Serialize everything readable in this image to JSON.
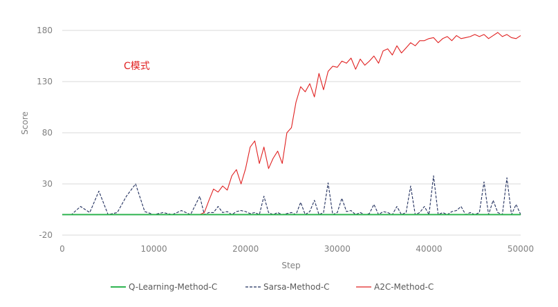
{
  "chart_data": {
    "type": "line",
    "title": "",
    "annotation": "C模式",
    "xlabel": "Step",
    "ylabel": "Score",
    "xlim": [
      0,
      50000
    ],
    "ylim": [
      -20,
      180
    ],
    "x_ticks": [
      0,
      10000,
      20000,
      30000,
      40000,
      50000
    ],
    "y_ticks": [
      -20,
      30,
      80,
      130,
      180
    ],
    "grid": "horizontal",
    "legend_position": "bottom",
    "x": [
      0,
      1000,
      2000,
      3000,
      4000,
      5000,
      6000,
      7000,
      8000,
      9000,
      10000,
      11000,
      12000,
      13000,
      14000,
      15000,
      15500,
      16000,
      16500,
      17000,
      17500,
      18000,
      18500,
      19000,
      19500,
      20000,
      20500,
      21000,
      21500,
      22000,
      22500,
      23000,
      23500,
      24000,
      24500,
      25000,
      25500,
      26000,
      26500,
      27000,
      27500,
      28000,
      28500,
      29000,
      29500,
      30000,
      30500,
      31000,
      31500,
      32000,
      32500,
      33000,
      33500,
      34000,
      34500,
      35000,
      35500,
      36000,
      36500,
      37000,
      37500,
      38000,
      38500,
      39000,
      39500,
      40000,
      40500,
      41000,
      41500,
      42000,
      42500,
      43000,
      43500,
      44000,
      44500,
      45000,
      45500,
      46000,
      46500,
      47000,
      47500,
      48000,
      48500,
      49000,
      49500,
      50000
    ],
    "series": [
      {
        "name": "Q-Learning-Method-C",
        "color": "#2eb34f",
        "dash": "solid",
        "values": [
          0,
          0,
          0,
          0,
          0,
          0,
          0,
          0,
          0,
          0,
          0,
          0,
          0,
          0,
          0,
          0,
          0,
          0,
          0,
          0,
          0,
          0,
          0,
          0,
          0,
          0,
          0,
          0,
          0,
          0,
          0,
          0,
          0,
          0,
          0,
          0,
          0,
          0,
          0,
          0,
          0,
          0,
          0,
          0,
          0,
          0,
          0,
          0,
          0,
          0,
          0,
          0,
          0,
          0,
          0,
          0,
          0,
          0,
          0,
          0,
          0,
          0,
          0,
          0,
          0,
          0,
          0,
          0,
          0,
          0,
          0,
          0,
          0,
          0,
          0,
          0,
          0,
          0,
          0,
          0,
          0,
          0,
          0,
          0,
          0,
          0
        ]
      },
      {
        "name": "Sarsa-Method-C",
        "color": "#1f2d5c",
        "dash": "dashed",
        "values": [
          0,
          0,
          8,
          2,
          23,
          0,
          2,
          18,
          30,
          3,
          0,
          2,
          0,
          4,
          0,
          18,
          0,
          2,
          2,
          8,
          2,
          3,
          0,
          3,
          4,
          3,
          1,
          2,
          0,
          18,
          2,
          0,
          2,
          0,
          1,
          2,
          0,
          12,
          0,
          3,
          14,
          0,
          2,
          31,
          0,
          2,
          16,
          3,
          4,
          0,
          2,
          0,
          1,
          10,
          0,
          3,
          2,
          0,
          8,
          0,
          2,
          28,
          0,
          2,
          8,
          0,
          38,
          0,
          2,
          0,
          3,
          4,
          8,
          0,
          2,
          0,
          2,
          32,
          0,
          14,
          2,
          0,
          36,
          0,
          10,
          0
        ]
      },
      {
        "name": "A2C-Method-C",
        "color": "#e02020",
        "dash": "solid",
        "values": [
          0,
          0,
          0,
          0,
          0,
          0,
          0,
          0,
          0,
          0,
          0,
          0,
          0,
          0,
          0,
          0,
          2,
          14,
          25,
          22,
          28,
          24,
          38,
          44,
          30,
          45,
          66,
          72,
          50,
          66,
          45,
          55,
          62,
          50,
          80,
          85,
          110,
          125,
          120,
          128,
          115,
          138,
          122,
          140,
          145,
          144,
          150,
          148,
          153,
          142,
          152,
          146,
          150,
          155,
          148,
          160,
          162,
          156,
          165,
          158,
          163,
          168,
          165,
          170,
          170,
          172,
          173,
          168,
          172,
          174,
          170,
          175,
          172,
          173,
          174,
          176,
          174,
          176,
          172,
          175,
          178,
          174,
          176,
          173,
          172,
          175
        ]
      }
    ]
  }
}
